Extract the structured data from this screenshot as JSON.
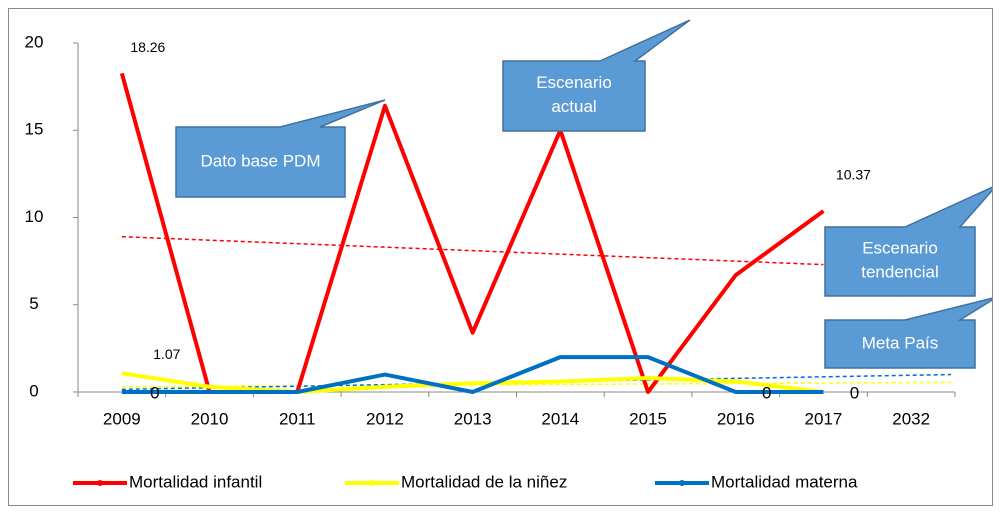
{
  "chart_data": {
    "type": "line",
    "categories": [
      "2009",
      "2010",
      "2011",
      "2012",
      "2013",
      "2014",
      "2015",
      "2016",
      "2017",
      "2032"
    ],
    "series": [
      {
        "name": "Mortalidad infantil",
        "color": "#ff0000",
        "values": [
          18.26,
          0,
          0,
          16.4,
          3.4,
          15,
          0,
          6.7,
          10.37,
          null
        ],
        "trend": [
          8.9,
          7.3
        ]
      },
      {
        "name": "Mortalidad de la niñez",
        "color": "#ffff00",
        "values": [
          1.07,
          0.3,
          0,
          0.3,
          0.5,
          0.6,
          0.8,
          0.6,
          0,
          null
        ],
        "trend": [
          0.3,
          0.55
        ]
      },
      {
        "name": "Mortalidad materna",
        "color": "#0070c0",
        "values": [
          0,
          0,
          0,
          1,
          0,
          2,
          2,
          0,
          0,
          null
        ],
        "trend": [
          0.15,
          1.0
        ]
      }
    ],
    "annotations": [
      "Dato base PDM",
      "Escenario actual",
      "Escenario tendencial",
      "Meta País"
    ],
    "ylim": [
      0,
      20
    ],
    "yticks": [
      0,
      5,
      10,
      15,
      20
    ],
    "legend": "bottom"
  }
}
